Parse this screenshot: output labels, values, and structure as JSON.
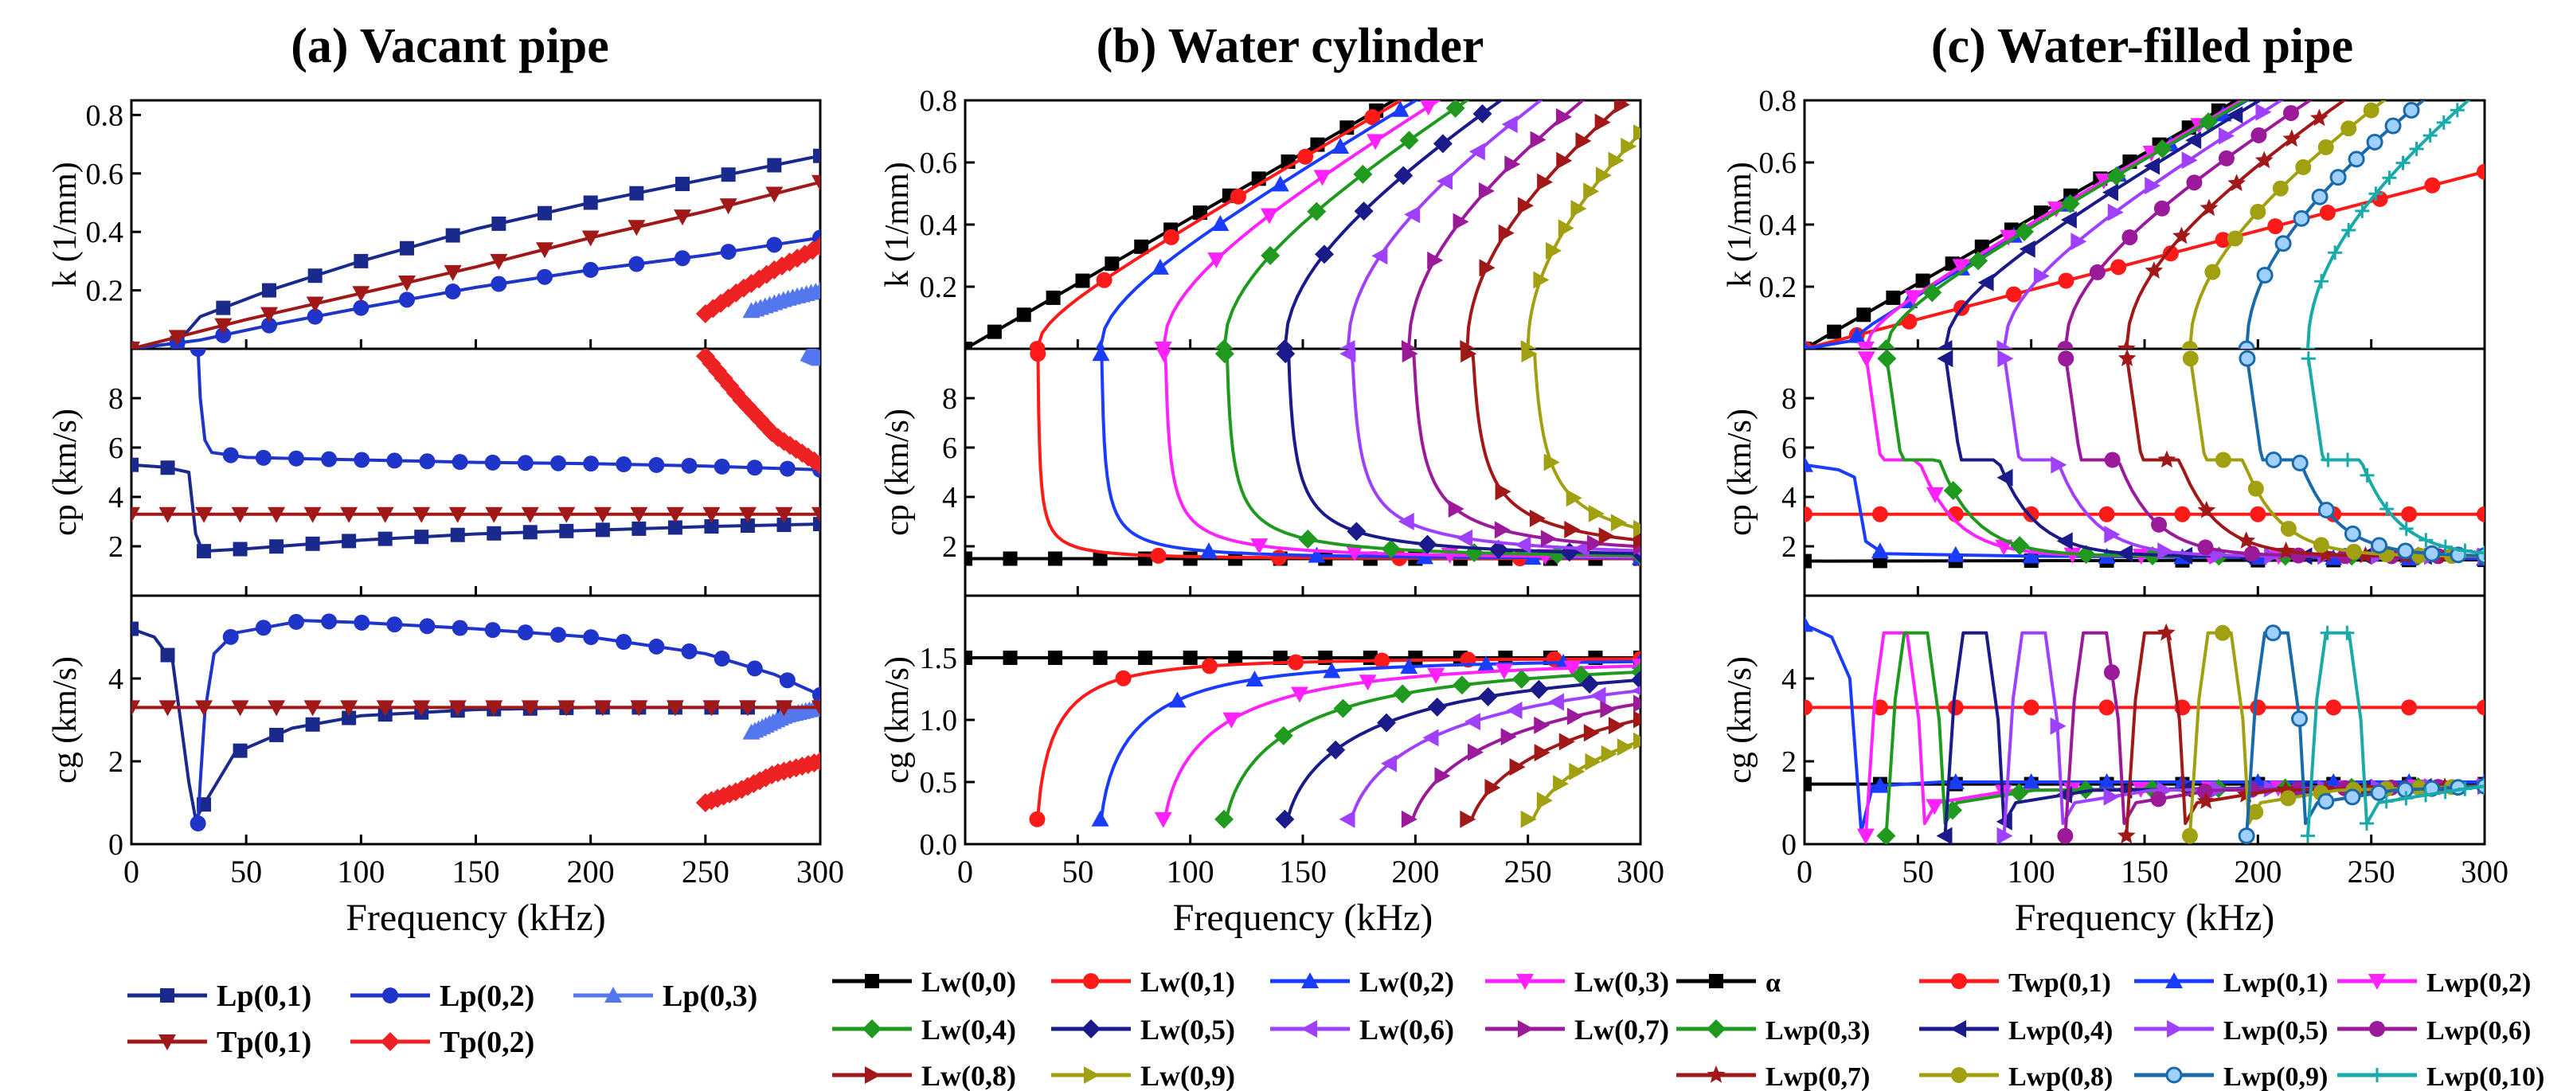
{
  "figure": {
    "x_label": "Frequency (kHz)",
    "x_ticks": [
      "0",
      "50",
      "100",
      "150",
      "200",
      "250",
      "300"
    ],
    "row_labels": [
      "k (1/mm)",
      "cp (km/s)",
      "cg (km/s)"
    ],
    "k_ticks": [
      "0.2",
      "0.4",
      "0.6",
      "0.8"
    ],
    "cp_ticks": [
      "2",
      "4",
      "6",
      "8"
    ],
    "cg_ticks_a": [
      "0",
      "2",
      "4"
    ],
    "cg_ticks_b": [
      "0.0",
      "0.5",
      "1.0",
      "1.5"
    ],
    "cg_ticks_c": [
      "0",
      "2",
      "4"
    ]
  },
  "chart_data": [
    {
      "type": "line",
      "title": "(a) Vacant pipe",
      "xlabel": "Frequency (kHz)",
      "xlim": [
        0,
        300
      ],
      "rows": [
        {
          "ylabel": "k (1/mm)",
          "ylim": [
            0,
            0.85
          ]
        },
        {
          "ylabel": "cp (km/s)",
          "ylim": [
            0,
            10
          ]
        },
        {
          "ylabel": "cg (km/s)",
          "ylim": [
            0,
            6
          ]
        }
      ],
      "series": [
        {
          "name": "Lp(0,1)",
          "color": "#1a2a8c",
          "marker": "square",
          "k": [
            [
              0,
              0
            ],
            [
              20,
              0.02
            ],
            [
              30,
              0.11
            ],
            [
              60,
              0.2
            ],
            [
              100,
              0.3
            ],
            [
              150,
              0.41
            ],
            [
              200,
              0.5
            ],
            [
              250,
              0.58
            ],
            [
              300,
              0.66
            ]
          ],
          "cp": [
            [
              0,
              5.3
            ],
            [
              15,
              5.2
            ],
            [
              25,
              5.0
            ],
            [
              28,
              2.5
            ],
            [
              31,
              1.8
            ],
            [
              50,
              1.9
            ],
            [
              100,
              2.25
            ],
            [
              150,
              2.5
            ],
            [
              200,
              2.65
            ],
            [
              250,
              2.8
            ],
            [
              300,
              2.9
            ]
          ],
          "cg": [
            [
              0,
              5.2
            ],
            [
              10,
              5.0
            ],
            [
              18,
              4.4
            ],
            [
              25,
              1.5
            ],
            [
              28,
              0.6
            ],
            [
              32,
              1.0
            ],
            [
              45,
              2.2
            ],
            [
              70,
              2.8
            ],
            [
              100,
              3.1
            ],
            [
              150,
              3.25
            ],
            [
              200,
              3.3
            ],
            [
              250,
              3.3
            ],
            [
              300,
              3.3
            ]
          ]
        },
        {
          "name": "Lp(0,2)",
          "color": "#1f35c9",
          "marker": "circle",
          "k": [
            [
              0,
              0
            ],
            [
              30,
              0.03
            ],
            [
              60,
              0.08
            ],
            [
              100,
              0.14
            ],
            [
              150,
              0.21
            ],
            [
              200,
              0.27
            ],
            [
              250,
              0.32
            ],
            [
              300,
              0.38
            ]
          ],
          "cp": [
            [
              29,
              10
            ],
            [
              30,
              8.0
            ],
            [
              32,
              6.3
            ],
            [
              35,
              5.8
            ],
            [
              50,
              5.6
            ],
            [
              100,
              5.5
            ],
            [
              150,
              5.4
            ],
            [
              200,
              5.35
            ],
            [
              250,
              5.25
            ],
            [
              300,
              5.1
            ]
          ],
          "cg": [
            [
              29,
              0.5
            ],
            [
              30,
              1.5
            ],
            [
              32,
              3.2
            ],
            [
              36,
              4.6
            ],
            [
              45,
              5.1
            ],
            [
              75,
              5.4
            ],
            [
              100,
              5.35
            ],
            [
              150,
              5.2
            ],
            [
              200,
              5.0
            ],
            [
              250,
              4.6
            ],
            [
              280,
              4.1
            ],
            [
              300,
              3.6
            ]
          ]
        },
        {
          "name": "Lp(0,3)",
          "color": "#5577ee",
          "marker": "triangle",
          "k": [
            [
              270,
              0.13
            ],
            [
              285,
              0.17
            ],
            [
              300,
              0.2
            ]
          ],
          "cp": [
            [
              295,
              9.8
            ],
            [
              300,
              9.6
            ]
          ],
          "cg": [
            [
              270,
              2.7
            ],
            [
              285,
              3.1
            ],
            [
              300,
              3.3
            ]
          ]
        },
        {
          "name": "Tp(0,1)",
          "color": "#a01818",
          "marker": "triangle-down",
          "k": [
            [
              0,
              0
            ],
            [
              50,
              0.1
            ],
            [
              100,
              0.19
            ],
            [
              150,
              0.28
            ],
            [
              200,
              0.38
            ],
            [
              250,
              0.47
            ],
            [
              300,
              0.57
            ]
          ],
          "cp": [
            [
              0,
              3.3
            ],
            [
              300,
              3.3
            ]
          ],
          "cg": [
            [
              0,
              3.3
            ],
            [
              300,
              3.3
            ]
          ]
        },
        {
          "name": "Tp(0,2)",
          "color": "#ee2222",
          "marker": "diamond",
          "k": [
            [
              250,
              0.12
            ],
            [
              265,
              0.2
            ],
            [
              280,
              0.27
            ],
            [
              300,
              0.35
            ]
          ],
          "cp": [
            [
              250,
              9.7
            ],
            [
              265,
              8.0
            ],
            [
              280,
              6.5
            ],
            [
              300,
              5.3
            ]
          ],
          "cg": [
            [
              250,
              1.0
            ],
            [
              265,
              1.3
            ],
            [
              280,
              1.7
            ],
            [
              300,
              2.0
            ]
          ]
        }
      ]
    },
    {
      "type": "line",
      "title": "(b) Water cylinder",
      "xlabel": "Frequency (kHz)",
      "xlim": [
        0,
        300
      ],
      "rows": [
        {
          "ylabel": "k (1/mm)",
          "ylim": [
            0,
            0.8
          ]
        },
        {
          "ylabel": "cp (km/s)",
          "ylim": [
            0,
            10
          ]
        },
        {
          "ylabel": "cg (km/s)",
          "ylim": [
            0,
            2.0
          ]
        }
      ],
      "series": [
        {
          "name": "Lw(0,0)",
          "color": "#000000",
          "marker": "square",
          "cutoff_kHz": 0
        },
        {
          "name": "Lw(0,1)",
          "color": "#ff1a1a",
          "marker": "circle",
          "cutoff_kHz": 32
        },
        {
          "name": "Lw(0,2)",
          "color": "#1a3cff",
          "marker": "triangle",
          "cutoff_kHz": 60
        },
        {
          "name": "Lw(0,3)",
          "color": "#ff22ff",
          "marker": "triangle-down",
          "cutoff_kHz": 88
        },
        {
          "name": "Lw(0,4)",
          "color": "#1f9a1f",
          "marker": "diamond",
          "cutoff_kHz": 115
        },
        {
          "name": "Lw(0,5)",
          "color": "#1a1a8a",
          "marker": "diamond",
          "cutoff_kHz": 142
        },
        {
          "name": "Lw(0,6)",
          "color": "#a040ff",
          "marker": "triangle-left",
          "cutoff_kHz": 170
        },
        {
          "name": "Lw(0,7)",
          "color": "#9a1a9a",
          "marker": "triangle-right",
          "cutoff_kHz": 197
        },
        {
          "name": "Lw(0,8)",
          "color": "#a01818",
          "marker": "triangle-right",
          "cutoff_kHz": 223
        },
        {
          "name": "Lw(0,9)",
          "color": "#a0a010",
          "marker": "triangle-right",
          "cutoff_kHz": 250
        }
      ]
    },
    {
      "type": "line",
      "title": "(c) Water-filled pipe",
      "xlabel": "Frequency (kHz)",
      "xlim": [
        0,
        300
      ],
      "rows": [
        {
          "ylabel": "k (1/mm)",
          "ylim": [
            0,
            0.8
          ]
        },
        {
          "ylabel": "cp (km/s)",
          "ylim": [
            0,
            10
          ]
        },
        {
          "ylabel": "cg (km/s)",
          "ylim": [
            0,
            6
          ]
        }
      ],
      "series": [
        {
          "name": "α",
          "color": "#000000",
          "marker": "square",
          "cutoff_kHz": 0
        },
        {
          "name": "Twp(0,1)",
          "color": "#ff1a1a",
          "marker": "circle",
          "cutoff_kHz": 0
        },
        {
          "name": "Lwp(0,1)",
          "color": "#1a3cff",
          "marker": "triangle",
          "cutoff_kHz": 0
        },
        {
          "name": "Lwp(0,2)",
          "color": "#ff22ff",
          "marker": "triangle-down",
          "cutoff_kHz": 27
        },
        {
          "name": "Lwp(0,3)",
          "color": "#1f9a1f",
          "marker": "diamond",
          "cutoff_kHz": 36
        },
        {
          "name": "Lwp(0,4)",
          "color": "#1a1a8a",
          "marker": "triangle-left",
          "cutoff_kHz": 62
        },
        {
          "name": "Lwp(0,5)",
          "color": "#a040ff",
          "marker": "triangle-right",
          "cutoff_kHz": 88
        },
        {
          "name": "Lwp(0,6)",
          "color": "#9a1a9a",
          "marker": "circle",
          "cutoff_kHz": 115
        },
        {
          "name": "Lwp(0,7)",
          "color": "#a01818",
          "marker": "star",
          "cutoff_kHz": 142
        },
        {
          "name": "Lwp(0,8)",
          "color": "#a0a010",
          "marker": "circle",
          "cutoff_kHz": 170
        },
        {
          "name": "Lwp(0,9)",
          "color": "#1a6aaa",
          "marker": "circle-open",
          "cutoff_kHz": 195
        },
        {
          "name": "Lwp(0,10)",
          "color": "#1aaaaa",
          "marker": "plus",
          "cutoff_kHz": 222
        }
      ]
    }
  ]
}
